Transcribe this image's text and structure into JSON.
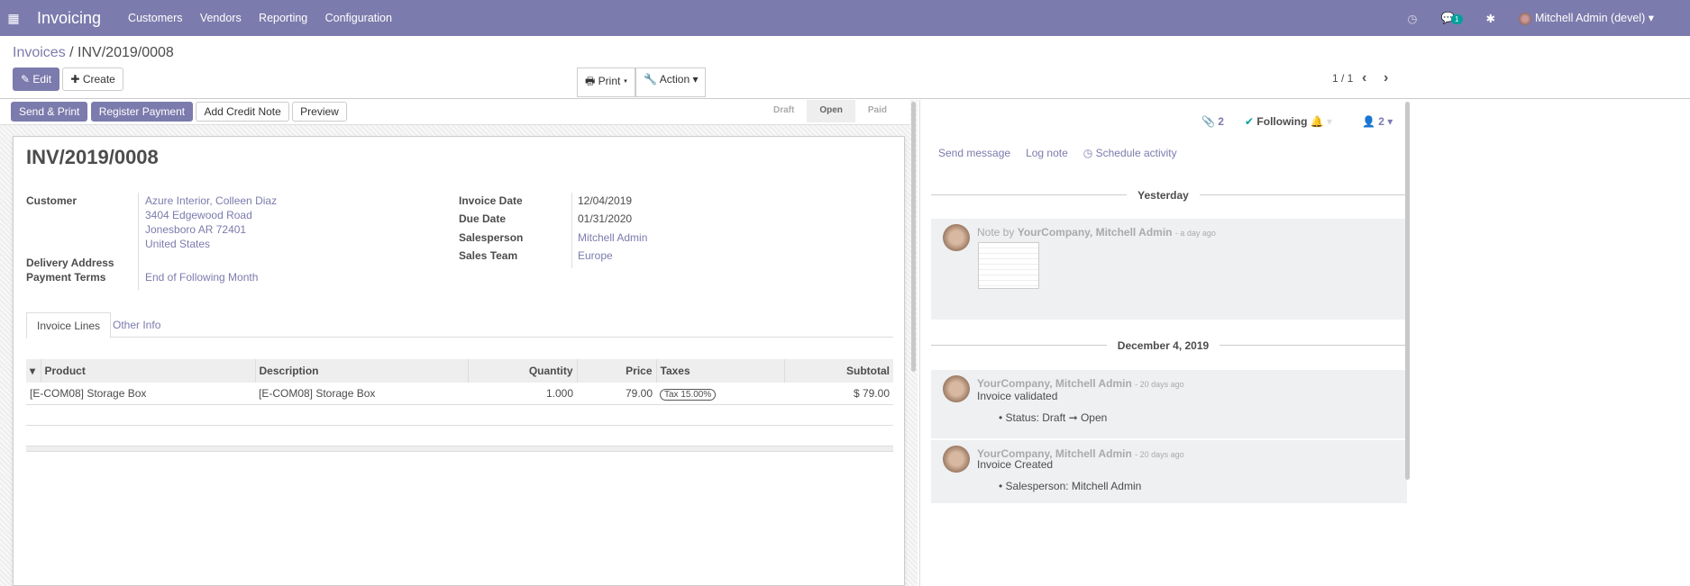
{
  "nav": {
    "app": "Invoicing",
    "menu": [
      "Customers",
      "Vendors",
      "Reporting",
      "Configuration"
    ],
    "chat_badge": "1",
    "user": "Mitchell Admin (devel)",
    "color": "#7c7bad"
  },
  "breadcrumb": {
    "parent": "Invoices",
    "current": "INV/2019/0008"
  },
  "controls": {
    "edit": "Edit",
    "create": "Create",
    "print": "Print",
    "action": "Action",
    "pager": "1 / 1"
  },
  "statusbar": {
    "buttons": [
      "Send & Print",
      "Register Payment",
      "Add Credit Note",
      "Preview"
    ],
    "stages": [
      "Draft",
      "Open",
      "Paid"
    ],
    "active_stage": "Open"
  },
  "invoice": {
    "title": "INV/2019/0008",
    "customer_label": "Customer",
    "customer": [
      "Azure Interior, Colleen Diaz",
      "3404 Edgewood Road",
      "Jonesboro AR 72401",
      "United States"
    ],
    "delivery_label": "Delivery Address",
    "terms_label": "Payment Terms",
    "terms": "End of Following Month",
    "invoice_date_label": "Invoice Date",
    "invoice_date": "12/04/2019",
    "due_date_label": "Due Date",
    "due_date": "01/31/2020",
    "salesperson_label": "Salesperson",
    "salesperson": "Mitchell Admin",
    "team_label": "Sales Team",
    "team": "Europe",
    "tabs": [
      "Invoice Lines",
      "Other Info"
    ],
    "columns": [
      "Product",
      "Description",
      "Quantity",
      "Price",
      "Taxes",
      "Subtotal"
    ],
    "lines": [
      {
        "product": "[E-COM08] Storage Box",
        "description": "[E-COM08] Storage Box",
        "quantity": "1.000",
        "price": "79.00",
        "taxes": "Tax 15.00%",
        "subtotal": "$ 79.00"
      }
    ]
  },
  "chatter": {
    "attachments": "2",
    "following": "Following",
    "followers": "2",
    "send": "Send message",
    "log": "Log note",
    "schedule": "Schedule activity",
    "groups": [
      {
        "date": "Yesterday"
      },
      {
        "date": "December 4, 2019"
      }
    ],
    "messages": [
      {
        "prefix": "Note by",
        "author": "YourCompany, Mitchell Admin",
        "time": "- a day ago"
      },
      {
        "author": "YourCompany, Mitchell Admin",
        "time": "- 20 days ago",
        "body": "Invoice validated",
        "tracking": "Status: Draft ➞ Open"
      },
      {
        "author": "YourCompany, Mitchell Admin",
        "time": "- 20 days ago",
        "body": "Invoice Created",
        "tracking": "Salesperson: Mitchell Admin"
      }
    ]
  }
}
